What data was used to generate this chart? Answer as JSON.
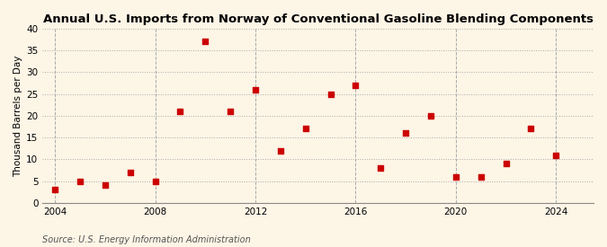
{
  "title": "Annual U.S. Imports from Norway of Conventional Gasoline Blending Components",
  "ylabel": "Thousand Barrels per Day",
  "source": "Source: U.S. Energy Information Administration",
  "years": [
    2004,
    2005,
    2006,
    2007,
    2008,
    2009,
    2010,
    2011,
    2012,
    2013,
    2014,
    2015,
    2016,
    2017,
    2018,
    2019,
    2020,
    2021,
    2022,
    2023,
    2024
  ],
  "values": [
    3,
    5,
    4,
    7,
    5,
    21,
    37,
    21,
    26,
    12,
    17,
    25,
    27,
    8,
    16,
    20,
    6,
    6,
    9,
    17,
    11
  ],
  "xlim": [
    2003.5,
    2025.5
  ],
  "ylim": [
    0,
    40
  ],
  "yticks": [
    0,
    5,
    10,
    15,
    20,
    25,
    30,
    35,
    40
  ],
  "xticks": [
    2004,
    2008,
    2012,
    2016,
    2020,
    2024
  ],
  "marker_color": "#cc0000",
  "marker": "s",
  "marker_size": 4,
  "bg_color": "#fdf5e6",
  "grid_color": "#aaaaaa",
  "title_fontsize": 9.5,
  "label_fontsize": 7.5,
  "tick_fontsize": 7.5,
  "source_fontsize": 7.0
}
